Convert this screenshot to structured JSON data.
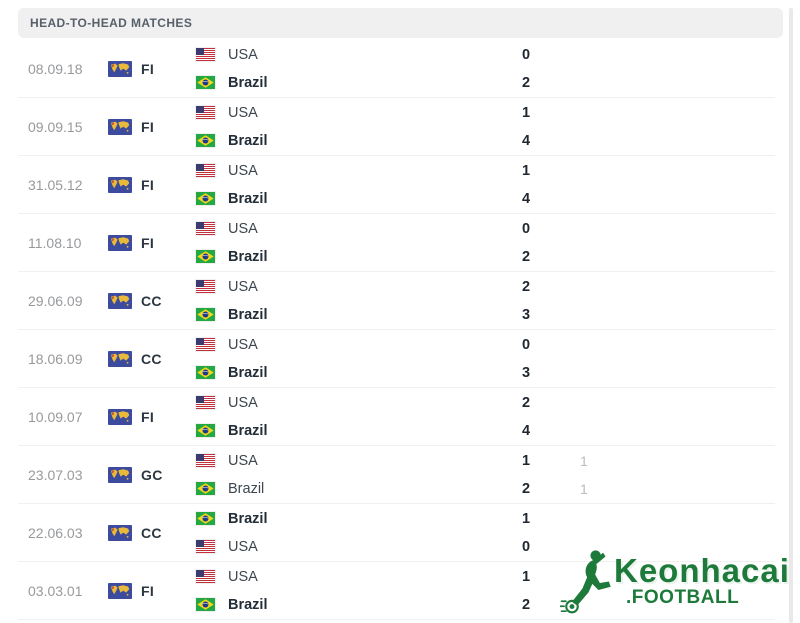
{
  "header": {
    "title": "HEAD-TO-HEAD MATCHES"
  },
  "table": {
    "matches": [
      {
        "date": "08.09.18",
        "competition": "FI",
        "lines": [
          {
            "team": "USA",
            "flag": "usa",
            "score": "0",
            "ht": "",
            "bold": false
          },
          {
            "team": "Brazil",
            "flag": "brazil",
            "score": "2",
            "ht": "",
            "bold": true
          }
        ]
      },
      {
        "date": "09.09.15",
        "competition": "FI",
        "lines": [
          {
            "team": "USA",
            "flag": "usa",
            "score": "1",
            "ht": "",
            "bold": false
          },
          {
            "team": "Brazil",
            "flag": "brazil",
            "score": "4",
            "ht": "",
            "bold": true
          }
        ]
      },
      {
        "date": "31.05.12",
        "competition": "FI",
        "lines": [
          {
            "team": "USA",
            "flag": "usa",
            "score": "1",
            "ht": "",
            "bold": false
          },
          {
            "team": "Brazil",
            "flag": "brazil",
            "score": "4",
            "ht": "",
            "bold": true
          }
        ]
      },
      {
        "date": "11.08.10",
        "competition": "FI",
        "lines": [
          {
            "team": "USA",
            "flag": "usa",
            "score": "0",
            "ht": "",
            "bold": false
          },
          {
            "team": "Brazil",
            "flag": "brazil",
            "score": "2",
            "ht": "",
            "bold": true
          }
        ]
      },
      {
        "date": "29.06.09",
        "competition": "CC",
        "lines": [
          {
            "team": "USA",
            "flag": "usa",
            "score": "2",
            "ht": "",
            "bold": false
          },
          {
            "team": "Brazil",
            "flag": "brazil",
            "score": "3",
            "ht": "",
            "bold": true
          }
        ]
      },
      {
        "date": "18.06.09",
        "competition": "CC",
        "lines": [
          {
            "team": "USA",
            "flag": "usa",
            "score": "0",
            "ht": "",
            "bold": false
          },
          {
            "team": "Brazil",
            "flag": "brazil",
            "score": "3",
            "ht": "",
            "bold": true
          }
        ]
      },
      {
        "date": "10.09.07",
        "competition": "FI",
        "lines": [
          {
            "team": "USA",
            "flag": "usa",
            "score": "2",
            "ht": "",
            "bold": false
          },
          {
            "team": "Brazil",
            "flag": "brazil",
            "score": "4",
            "ht": "",
            "bold": true
          }
        ]
      },
      {
        "date": "23.07.03",
        "competition": "GC",
        "lines": [
          {
            "team": "USA",
            "flag": "usa",
            "score": "1",
            "ht": "1",
            "bold": false
          },
          {
            "team": "Brazil",
            "flag": "brazil",
            "score": "2",
            "ht": "1",
            "bold": false
          }
        ]
      },
      {
        "date": "22.06.03",
        "competition": "CC",
        "lines": [
          {
            "team": "Brazil",
            "flag": "brazil",
            "score": "1",
            "ht": "",
            "bold": true
          },
          {
            "team": "USA",
            "flag": "usa",
            "score": "0",
            "ht": "",
            "bold": false
          }
        ]
      },
      {
        "date": "03.03.01",
        "competition": "FI",
        "lines": [
          {
            "team": "USA",
            "flag": "usa",
            "score": "1",
            "ht": "",
            "bold": false
          },
          {
            "team": "Brazil",
            "flag": "brazil",
            "score": "2",
            "ht": "",
            "bold": true
          }
        ]
      }
    ]
  },
  "logo": {
    "brand": "Keonhacai",
    "suffix": ".FOOTBALL"
  },
  "colors": {
    "accent_green": "#1e7a3a",
    "header_bg": "#f0f0f1",
    "header_text": "#57606a",
    "date_text": "#97999c",
    "team_text": "#3d474f",
    "team_text_bold": "#232e38",
    "score_text": "#1f2830",
    "ht_text": "#b9bcbe",
    "divider": "#f0f0f0",
    "fifa_flag_blue": "#3d4b9e"
  }
}
